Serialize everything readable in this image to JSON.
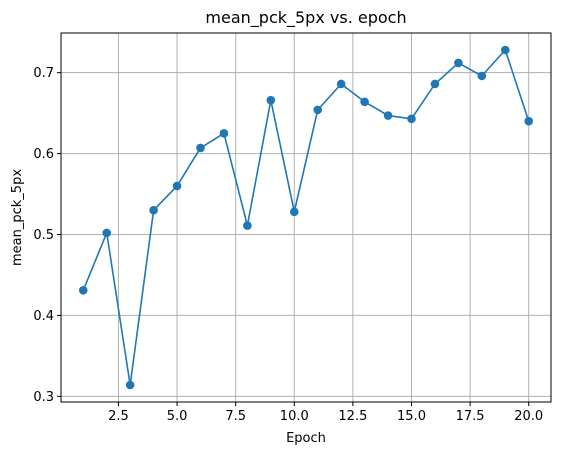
{
  "chart_data": {
    "type": "line",
    "title": "mean_pck_5px vs. epoch",
    "xlabel": "Epoch",
    "ylabel": "mean_pck_5px",
    "x": [
      1,
      2,
      3,
      4,
      5,
      6,
      7,
      8,
      9,
      10,
      11,
      12,
      13,
      14,
      15,
      16,
      17,
      18,
      19,
      20
    ],
    "series": [
      {
        "values": [
          0.431,
          0.502,
          0.314,
          0.53,
          0.56,
          0.607,
          0.625,
          0.511,
          0.666,
          0.528,
          0.654,
          0.686,
          0.664,
          0.647,
          0.643,
          0.686,
          0.712,
          0.696,
          0.728,
          0.64
        ],
        "color": "#1f77b4",
        "marker": "circle"
      }
    ],
    "xlim": [
      0.05,
      20.95
    ],
    "ylim": [
      0.293,
      0.749
    ],
    "xticks": [
      2.5,
      5.0,
      7.5,
      10.0,
      12.5,
      15.0,
      17.5,
      20.0
    ],
    "xtick_labels": [
      "2.5",
      "5.0",
      "7.5",
      "10.0",
      "12.5",
      "15.0",
      "17.5",
      "20.0"
    ],
    "yticks": [
      0.3,
      0.4,
      0.5,
      0.6,
      0.7
    ],
    "ytick_labels": [
      "0.3",
      "0.4",
      "0.5",
      "0.6",
      "0.7"
    ],
    "grid": true,
    "legend": false
  }
}
